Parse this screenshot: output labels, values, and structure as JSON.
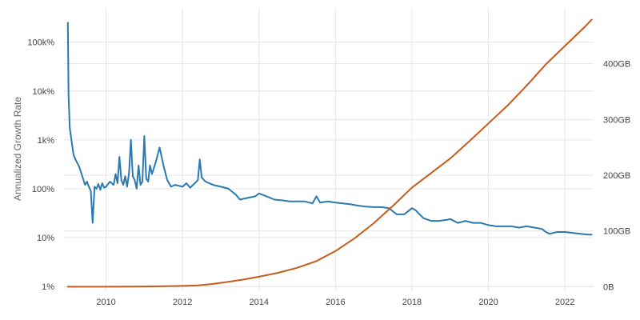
{
  "chart_data": {
    "type": "line",
    "title": "",
    "xlabel": "",
    "ylabel": "Annualized Growth Rate",
    "y2label": "",
    "grid": true,
    "legend": "none",
    "xlim": [
      2008.9,
      2022.75
    ],
    "xticks": [
      2010,
      2012,
      2014,
      2016,
      2018,
      2020,
      2022
    ],
    "xtick_labels": [
      "2010",
      "2012",
      "2014",
      "2016",
      "2018",
      "2020",
      "2022"
    ],
    "y_left": {
      "scale": "log",
      "unit": "percent",
      "lim": [
        0.8,
        500000
      ],
      "ticks": [
        1,
        10,
        100,
        1000,
        10000,
        100000
      ],
      "tick_labels": [
        "1%",
        "10%",
        "100%",
        "1k%",
        "10k%",
        "100k%"
      ]
    },
    "y_right": {
      "scale": "linear",
      "unit": "GB",
      "lim": [
        -8,
        500
      ],
      "ticks": [
        0,
        100,
        200,
        300,
        400
      ],
      "tick_labels": [
        "0B",
        "100GB",
        "200GB",
        "300GB",
        "400GB"
      ]
    },
    "series": [
      {
        "axis": "left",
        "color": "#2a7ab0",
        "x": [
          2009.0,
          2009.02,
          2009.05,
          2009.1,
          2009.15,
          2009.2,
          2009.3,
          2009.4,
          2009.45,
          2009.5,
          2009.55,
          2009.6,
          2009.65,
          2009.7,
          2009.75,
          2009.8,
          2009.85,
          2009.9,
          2009.95,
          2010.0,
          2010.1,
          2010.2,
          2010.25,
          2010.3,
          2010.35,
          2010.4,
          2010.45,
          2010.5,
          2010.55,
          2010.6,
          2010.65,
          2010.7,
          2010.75,
          2010.8,
          2010.85,
          2010.9,
          2010.95,
          2011.0,
          2011.05,
          2011.1,
          2011.15,
          2011.2,
          2011.3,
          2011.4,
          2011.5,
          2011.6,
          2011.7,
          2011.8,
          2011.9,
          2012.0,
          2012.1,
          2012.2,
          2012.3,
          2012.4,
          2012.45,
          2012.5,
          2012.6,
          2012.8,
          2013.0,
          2013.2,
          2013.4,
          2013.5,
          2013.7,
          2013.9,
          2014.0,
          2014.2,
          2014.4,
          2014.6,
          2014.8,
          2015.0,
          2015.2,
          2015.4,
          2015.5,
          2015.6,
          2015.8,
          2016.0,
          2016.2,
          2016.4,
          2016.6,
          2016.8,
          2017.0,
          2017.2,
          2017.4,
          2017.6,
          2017.8,
          2018.0,
          2018.1,
          2018.2,
          2018.3,
          2018.5,
          2018.7,
          2018.9,
          2019.0,
          2019.2,
          2019.4,
          2019.6,
          2019.8,
          2020.0,
          2020.2,
          2020.4,
          2020.6,
          2020.8,
          2021.0,
          2021.2,
          2021.4,
          2021.5,
          2021.6,
          2021.8,
          2022.0,
          2022.2,
          2022.4,
          2022.6,
          2022.7
        ],
        "values": [
          250000,
          8000,
          1800,
          900,
          500,
          400,
          280,
          160,
          120,
          140,
          110,
          90,
          20,
          110,
          100,
          125,
          95,
          130,
          105,
          110,
          140,
          120,
          200,
          130,
          450,
          150,
          120,
          180,
          110,
          210,
          1000,
          180,
          150,
          100,
          300,
          120,
          140,
          1200,
          160,
          140,
          300,
          200,
          350,
          700,
          300,
          150,
          110,
          120,
          115,
          110,
          130,
          105,
          125,
          150,
          400,
          170,
          140,
          120,
          110,
          100,
          75,
          60,
          65,
          70,
          80,
          70,
          60,
          58,
          55,
          55,
          55,
          50,
          70,
          52,
          55,
          52,
          50,
          48,
          45,
          43,
          42,
          42,
          40,
          30,
          30,
          40,
          36,
          30,
          25,
          22,
          22,
          23,
          24,
          20,
          22,
          20,
          20,
          18,
          17,
          17,
          17,
          16,
          17,
          16,
          15,
          13,
          12,
          13,
          13,
          12.5,
          12,
          11.5,
          11.5
        ]
      },
      {
        "axis": "right",
        "color": "#c85a1a",
        "x": [
          2009.0,
          2010.0,
          2011.0,
          2012.0,
          2012.4,
          2012.8,
          2013.2,
          2013.6,
          2014.0,
          2014.5,
          2015.0,
          2015.5,
          2016.0,
          2016.5,
          2017.0,
          2017.5,
          2018.0,
          2018.5,
          2019.0,
          2019.5,
          2020.0,
          2020.5,
          2021.0,
          2021.5,
          2022.0,
          2022.5,
          2022.7
        ],
        "values": [
          0,
          0.1,
          0.5,
          1.5,
          2.5,
          5,
          9,
          13,
          18,
          25,
          34,
          46,
          64,
          87,
          114,
          145,
          178,
          204,
          230,
          261,
          293,
          325,
          361,
          399,
          432,
          465,
          479
        ]
      }
    ]
  }
}
